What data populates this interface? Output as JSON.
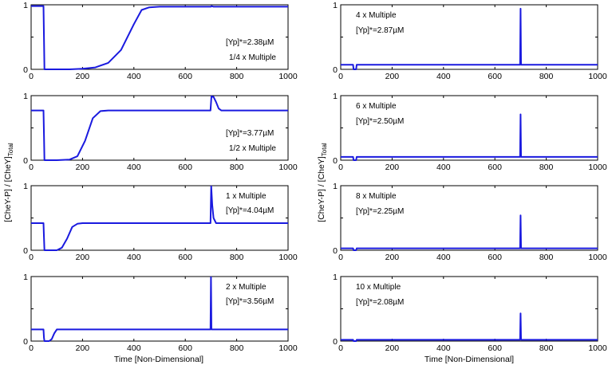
{
  "figure": {
    "ylabel_main": "[CheY-P] / [CheY]",
    "ylabel_sub": "Total",
    "xlabel": "Time [Non-Dimensional]"
  },
  "chart_data": [
    {
      "type": "line",
      "multiple": "1/4 x Multiple",
      "yp": "[Yp]*=2.38µM",
      "xlim": [
        0,
        1000
      ],
      "ylim": [
        0,
        1
      ],
      "x_ticks": [
        "0",
        "200",
        "400",
        "600",
        "800",
        "1000"
      ],
      "y_ticks": [
        "0",
        "0.5",
        "1"
      ],
      "series": [
        {
          "name": "CheY-P",
          "x": [
            0,
            48,
            50,
            52,
            100,
            150,
            200,
            250,
            300,
            350,
            400,
            430,
            460,
            500,
            600,
            700,
            702,
            710,
            1000
          ],
          "y": [
            0.98,
            0.98,
            0.5,
            0.0,
            0.0,
            0.0,
            0.01,
            0.03,
            0.1,
            0.3,
            0.7,
            0.92,
            0.96,
            0.97,
            0.97,
            0.97,
            0.98,
            0.97,
            0.97
          ]
        }
      ]
    },
    {
      "type": "line",
      "multiple": "4 x Multiple",
      "yp": "[Yp]*=2.87µM",
      "xlim": [
        0,
        1000
      ],
      "ylim": [
        0,
        1
      ],
      "x_ticks": [
        "0",
        "200",
        "400",
        "600",
        "800",
        "1000"
      ],
      "y_ticks": [
        "0",
        "0.5",
        "1"
      ],
      "series": [
        {
          "name": "CheY-P",
          "x": [
            0,
            48,
            50,
            52,
            60,
            62,
            100,
            698,
            700,
            702,
            1000
          ],
          "y": [
            0.07,
            0.07,
            0.0,
            0.0,
            0.0,
            0.07,
            0.07,
            0.07,
            0.94,
            0.07,
            0.07
          ]
        }
      ]
    },
    {
      "type": "line",
      "multiple": "1/2 x Multiple",
      "yp": "[Yp]*=3.77µM",
      "xlim": [
        0,
        1000
      ],
      "ylim": [
        0,
        1
      ],
      "x_ticks": [
        "0",
        "200",
        "400",
        "600",
        "800",
        "1000"
      ],
      "y_ticks": [
        "0",
        "0.5",
        "1"
      ],
      "series": [
        {
          "name": "CheY-P",
          "x": [
            0,
            48,
            50,
            52,
            100,
            150,
            180,
            210,
            240,
            270,
            300,
            400,
            698,
            702,
            710,
            720,
            730,
            740,
            750,
            1000
          ],
          "y": [
            0.77,
            0.77,
            0.4,
            0.0,
            0.0,
            0.01,
            0.06,
            0.3,
            0.65,
            0.76,
            0.77,
            0.77,
            0.77,
            0.99,
            0.98,
            0.9,
            0.8,
            0.77,
            0.77,
            0.77
          ]
        }
      ]
    },
    {
      "type": "line",
      "multiple": "6 x Multiple",
      "yp": "[Yp]*=2.50µM",
      "xlim": [
        0,
        1000
      ],
      "ylim": [
        0,
        1
      ],
      "x_ticks": [
        "0",
        "200",
        "400",
        "600",
        "800",
        "1000"
      ],
      "y_ticks": [
        "0",
        "0.5",
        "1"
      ],
      "series": [
        {
          "name": "CheY-P",
          "x": [
            0,
            48,
            50,
            52,
            60,
            62,
            100,
            698,
            700,
            702,
            1000
          ],
          "y": [
            0.05,
            0.05,
            0.0,
            0.0,
            0.0,
            0.05,
            0.05,
            0.05,
            0.71,
            0.05,
            0.05
          ]
        }
      ]
    },
    {
      "type": "line",
      "multiple": "1 x Multiple",
      "yp": "[Yp]*=4.04µM",
      "xlim": [
        0,
        1000
      ],
      "ylim": [
        0,
        1
      ],
      "x_ticks": [
        "0",
        "200",
        "400",
        "600",
        "800",
        "1000"
      ],
      "y_ticks": [
        "0",
        "0.5",
        "1"
      ],
      "series": [
        {
          "name": "CheY-P",
          "x": [
            0,
            48,
            50,
            52,
            100,
            120,
            140,
            160,
            180,
            200,
            400,
            698,
            701,
            705,
            710,
            720,
            1000
          ],
          "y": [
            0.42,
            0.42,
            0.2,
            0.0,
            0.0,
            0.04,
            0.18,
            0.36,
            0.41,
            0.42,
            0.42,
            0.42,
            0.99,
            0.7,
            0.5,
            0.42,
            0.42
          ]
        }
      ]
    },
    {
      "type": "line",
      "multiple": "8 x Multiple",
      "yp": "[Yp]*=2.25µM",
      "xlim": [
        0,
        1000
      ],
      "ylim": [
        0,
        1
      ],
      "x_ticks": [
        "0",
        "200",
        "400",
        "600",
        "800",
        "1000"
      ],
      "y_ticks": [
        "0",
        "0.5",
        "1"
      ],
      "series": [
        {
          "name": "CheY-P",
          "x": [
            0,
            48,
            50,
            52,
            60,
            62,
            100,
            698,
            700,
            702,
            1000
          ],
          "y": [
            0.03,
            0.03,
            0.0,
            0.0,
            0.0,
            0.03,
            0.03,
            0.03,
            0.54,
            0.03,
            0.03
          ]
        }
      ]
    },
    {
      "type": "line",
      "multiple": "2 x Multiple",
      "yp": "[Yp]*=3.56µM",
      "xlim": [
        0,
        1000
      ],
      "ylim": [
        0,
        1
      ],
      "x_ticks": [
        "0",
        "200",
        "400",
        "600",
        "800",
        "1000"
      ],
      "y_ticks": [
        "0",
        "0.5",
        "1"
      ],
      "series": [
        {
          "name": "CheY-P",
          "x": [
            0,
            48,
            50,
            52,
            70,
            80,
            90,
            100,
            120,
            698,
            700,
            702,
            1000
          ],
          "y": [
            0.18,
            0.18,
            0.05,
            0.0,
            0.0,
            0.03,
            0.12,
            0.18,
            0.18,
            0.18,
            0.99,
            0.18,
            0.18
          ]
        }
      ]
    },
    {
      "type": "line",
      "multiple": "10 x Multiple",
      "yp": "[Yp]*=2.08µM",
      "xlim": [
        0,
        1000
      ],
      "ylim": [
        0,
        1
      ],
      "x_ticks": [
        "0",
        "200",
        "400",
        "600",
        "800",
        "1000"
      ],
      "y_ticks": [
        "0",
        "0.5",
        "1"
      ],
      "series": [
        {
          "name": "CheY-P",
          "x": [
            0,
            48,
            50,
            52,
            60,
            62,
            100,
            698,
            700,
            702,
            1000
          ],
          "y": [
            0.02,
            0.02,
            0.0,
            0.0,
            0.0,
            0.02,
            0.02,
            0.02,
            0.43,
            0.02,
            0.02
          ]
        }
      ]
    }
  ]
}
